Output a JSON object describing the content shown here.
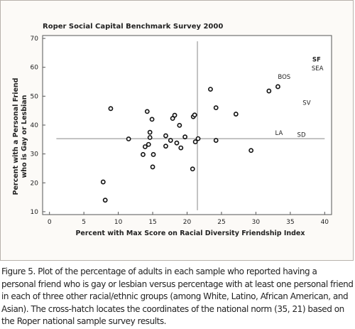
{
  "chart_data": {
    "type": "scatter",
    "title": "Roper Social Capital Benchmark Survey 2000",
    "xlabel": "Percent with Max Score on Racial Diversity Friendship Index",
    "ylabel_line1": "Percent with a Personal Friend",
    "ylabel_line2": "who is Gay or Lesbian",
    "xlim": [
      -1,
      41
    ],
    "ylim": [
      9,
      71
    ],
    "x_ticks": [
      0,
      5,
      10,
      15,
      20,
      25,
      30,
      35,
      40
    ],
    "y_ticks": [
      10,
      20,
      30,
      40,
      50,
      60,
      70
    ],
    "grid": false,
    "reference_lines": {
      "y": 35.3,
      "x": 21.5
    },
    "points": [
      {
        "x": 7.8,
        "y": 20.3
      },
      {
        "x": 8.1,
        "y": 14.0
      },
      {
        "x": 8.9,
        "y": 45.7
      },
      {
        "x": 11.5,
        "y": 35.2
      },
      {
        "x": 13.6,
        "y": 29.8
      },
      {
        "x": 13.9,
        "y": 32.5
      },
      {
        "x": 14.2,
        "y": 44.7
      },
      {
        "x": 14.4,
        "y": 33.3
      },
      {
        "x": 14.6,
        "y": 37.5
      },
      {
        "x": 14.6,
        "y": 35.7
      },
      {
        "x": 14.9,
        "y": 42.0
      },
      {
        "x": 15.0,
        "y": 25.5
      },
      {
        "x": 15.1,
        "y": 29.8
      },
      {
        "x": 16.9,
        "y": 36.3
      },
      {
        "x": 16.9,
        "y": 32.7
      },
      {
        "x": 17.6,
        "y": 34.7
      },
      {
        "x": 17.9,
        "y": 42.3
      },
      {
        "x": 18.2,
        "y": 43.4
      },
      {
        "x": 18.5,
        "y": 33.8
      },
      {
        "x": 18.9,
        "y": 39.9
      },
      {
        "x": 19.1,
        "y": 32.1
      },
      {
        "x": 19.7,
        "y": 35.9
      },
      {
        "x": 20.9,
        "y": 42.9
      },
      {
        "x": 21.1,
        "y": 43.5
      },
      {
        "x": 21.2,
        "y": 34.2
      },
      {
        "x": 21.6,
        "y": 35.3
      },
      {
        "x": 20.8,
        "y": 24.8
      },
      {
        "x": 23.4,
        "y": 52.4
      },
      {
        "x": 24.2,
        "y": 46.0
      },
      {
        "x": 24.2,
        "y": 34.7
      },
      {
        "x": 27.1,
        "y": 43.8
      },
      {
        "x": 29.3,
        "y": 31.2
      },
      {
        "x": 31.9,
        "y": 51.8
      },
      {
        "x": 33.2,
        "y": 53.3
      }
    ],
    "annotations": [
      {
        "text": "SF",
        "x": 38.2,
        "y": 62.0,
        "bold": true
      },
      {
        "text": "SEA",
        "x": 38.1,
        "y": 59.0,
        "bold": false
      },
      {
        "text": "BOS",
        "x": 33.2,
        "y": 56.0,
        "bold": false
      },
      {
        "text": "SV",
        "x": 36.8,
        "y": 47.0,
        "bold": false
      },
      {
        "text": "LA",
        "x": 32.8,
        "y": 36.5,
        "bold": false
      },
      {
        "text": "SD",
        "x": 36.0,
        "y": 36.0,
        "bold": false
      }
    ]
  },
  "caption": "Figure 5. Plot of the percentage of adults in each sample who reported having a personal friend who is gay or lesbian versus percentage with at least one personal friend in each of three other racial/ethnic groups (among White, Latino, African American, and Asian). The cross-hatch locates the coordinates of the national norm (35, 21) based on the Roper national sample survey results."
}
